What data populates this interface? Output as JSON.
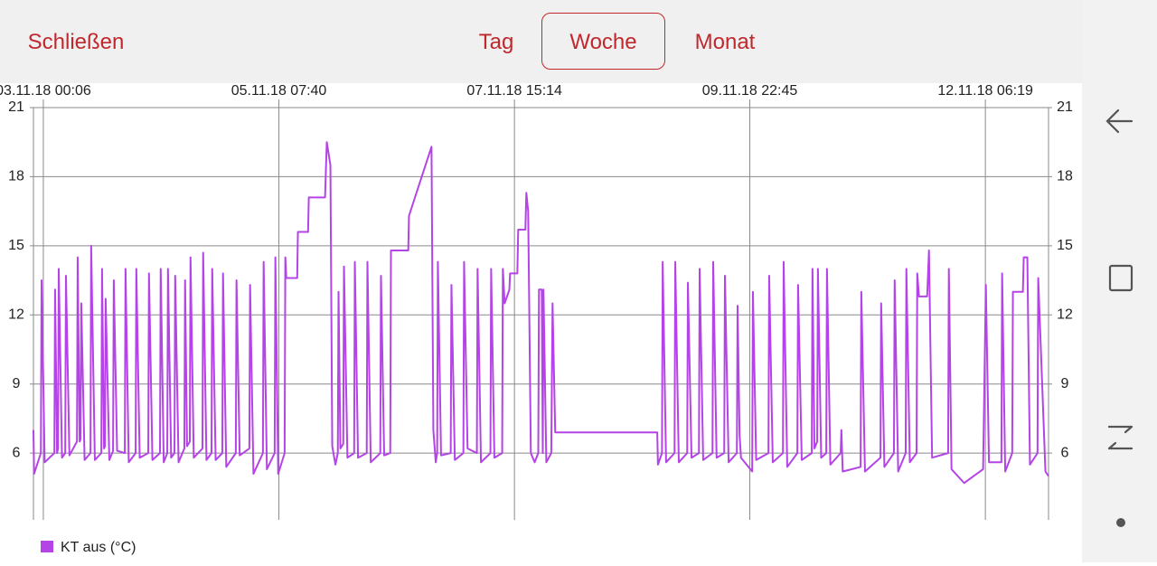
{
  "header": {
    "close": "Schließen",
    "tabs": [
      "Tag",
      "Woche",
      "Monat"
    ],
    "selected_tab": 1
  },
  "chart_data": {
    "type": "line",
    "grid": true,
    "x": [
      "02.11.18 21:46",
      "02.11.18 21:55",
      "02.11.18 23:31",
      "02.11.18 23:41",
      "03.11.18 00:25",
      "03.11.18 02:42",
      "03.11.18 02:52",
      "03.11.18 03:20",
      "03.11.18 03:34",
      "03.11.18 03:44",
      "03.11.18 04:30",
      "03.11.18 05:16",
      "03.11.18 05:26",
      "03.11.18 06:15",
      "03.11.18 08:02",
      "03.11.18 08:12",
      "03.11.18 08:40",
      "03.11.18 08:53",
      "03.11.18 09:03",
      "03.11.18 09:50",
      "03.11.18 11:13",
      "03.11.18 11:23",
      "03.11.18 12:15",
      "03.11.18 13:47",
      "03.11.18 13:57",
      "03.11.18 14:25",
      "03.11.18 14:38",
      "03.11.18 14:48",
      "03.11.18 15:40",
      "03.11.18 16:33",
      "03.11.18 16:43",
      "03.11.18 17:30",
      "03.11.18 19:19",
      "03.11.18 19:29",
      "03.11.18 20:15",
      "03.11.18 21:52",
      "03.11.18 22:02",
      "03.11.18 22:50",
      "04.11.18 00:51",
      "04.11.18 01:01",
      "04.11.18 01:50",
      "04.11.18 03:37",
      "04.11.18 03:47",
      "04.11.18 04:30",
      "04.11.18 05:20",
      "04.11.18 05:30",
      "04.11.18 06:15",
      "04.11.18 07:02",
      "04.11.18 07:12",
      "04.11.18 08:00",
      "04.11.18 09:22",
      "04.11.18 09:32",
      "04.11.18 10:00",
      "04.11.18 10:39",
      "04.11.18 10:49",
      "04.11.18 11:35",
      "04.11.18 13:38",
      "04.11.18 13:48",
      "04.11.18 14:35",
      "04.11.18 15:46",
      "04.11.18 15:56",
      "04.11.18 16:45",
      "04.11.18 18:19",
      "04.11.18 18:29",
      "04.11.18 19:15",
      "04.11.18 21:30",
      "04.11.18 21:40",
      "04.11.18 22:25",
      "05.11.18 00:42",
      "05.11.18 00:52",
      "05.11.18 01:40",
      "05.11.18 03:54",
      "05.11.18 04:04",
      "05.11.18 04:50",
      "05.11.18 06:40",
      "05.11.18 06:50",
      "05.11.18 07:30",
      "05.11.18 09:01",
      "05.11.18 09:11",
      "05.11.18 09:25",
      "05.11.18 11:59",
      "05.11.18 12:09",
      "05.11.18 14:33",
      "05.11.18 14:43",
      "05.11.18 18:33",
      "05.11.18 18:58",
      "05.11.18 19:49",
      "05.11.18 20:15",
      "05.11.18 21:00",
      "05.11.18 21:34",
      "05.11.18 21:44",
      "05.11.18 22:10",
      "05.11.18 22:51",
      "05.11.18 23:01",
      "05.11.18 23:50",
      "06.11.18 01:25",
      "06.11.18 01:35",
      "06.11.18 02:20",
      "06.11.18 04:23",
      "06.11.18 04:33",
      "06.11.18 05:20",
      "06.11.18 07:35",
      "06.11.18 07:45",
      "06.11.18 08:30",
      "06.11.18 09:56",
      "06.11.18 10:06",
      "06.11.18 14:11",
      "06.11.18 14:21",
      "06.11.18 19:40",
      "06.11.18 20:06",
      "06.11.18 20:40",
      "06.11.18 21:00",
      "06.11.18 21:10",
      "06.11.18 21:55",
      "07.11.18 00:12",
      "07.11.18 00:22",
      "07.11.18 01:10",
      "07.11.18 03:11",
      "07.11.18 03:21",
      "07.11.18 04:10",
      "07.11.18 06:22",
      "07.11.18 06:32",
      "07.11.18 07:20",
      "07.11.18 09:34",
      "07.11.18 09:44",
      "07.11.18 10:30",
      "07.11.18 12:20",
      "07.11.18 12:30",
      "07.11.18 12:55",
      "07.11.18 14:02",
      "07.11.18 14:12",
      "07.11.18 15:55",
      "07.11.18 16:07",
      "07.11.18 17:49",
      "07.11.18 18:02",
      "07.11.18 18:28",
      "07.11.18 19:06",
      "07.11.18 20:00",
      "07.11.18 20:51",
      "07.11.18 21:01",
      "07.11.18 21:40",
      "07.11.18 21:55",
      "07.11.18 22:05",
      "07.11.18 22:45",
      "07.11.18 23:55",
      "08.11.18 00:13",
      "08.11.18 00:51",
      "09.11.18 00:55",
      "09.11.18 01:05",
      "09.11.18 02:02",
      "09.11.18 02:12",
      "09.11.18 03:00",
      "09.11.18 05:00",
      "09.11.18 05:10",
      "09.11.18 06:00",
      "09.11.18 07:59",
      "09.11.18 08:09",
      "09.11.18 09:00",
      "09.11.18 10:45",
      "09.11.18 10:55",
      "09.11.18 11:45",
      "09.11.18 13:57",
      "09.11.18 14:07",
      "09.11.18 14:55",
      "09.11.18 16:43",
      "09.11.18 16:53",
      "09.11.18 17:45",
      "09.11.18 19:42",
      "09.11.18 19:52",
      "09.11.18 20:20",
      "09.11.18 20:40",
      "09.11.18 23:19",
      "09.11.18 23:29",
      "10.11.18 00:15",
      "10.11.18 03:09",
      "10.11.18 03:19",
      "10.11.18 04:10",
      "10.11.18 06:34",
      "10.11.18 06:44",
      "10.11.18 07:35",
      "10.11.18 09:58",
      "10.11.18 10:08",
      "10.11.18 11:00",
      "10.11.18 13:22",
      "10.11.18 13:32",
      "10.11.18 14:00",
      "10.11.18 14:39",
      "10.11.18 14:49",
      "10.11.18 15:35",
      "10.11.18 16:47",
      "10.11.18 16:57",
      "10.11.18 17:45",
      "10.11.18 20:11",
      "10.11.18 20:21",
      "10.11.18 20:40",
      "11.11.18 00:53",
      "11.11.18 01:03",
      "11.11.18 01:55",
      "11.11.18 05:34",
      "11.11.18 05:44",
      "11.11.18 06:30",
      "11.11.18 08:45",
      "11.11.18 08:55",
      "11.11.18 09:45",
      "11.11.18 11:31",
      "11.11.18 11:41",
      "11.11.18 12:30",
      "11.11.18 14:05",
      "11.11.18 14:15",
      "11.11.18 14:40",
      "11.11.18 16:35",
      "11.11.18 17:01",
      "11.11.18 17:45",
      "11.11.18 21:32",
      "11.11.18 21:42",
      "11.11.18 22:20",
      "12.11.18 01:19",
      "12.11.18 05:47",
      "12.11.18 06:26",
      "12.11.18 07:10",
      "12.11.18 10:06",
      "12.11.18 10:16",
      "12.11.18 11:00",
      "12.11.18 12:39",
      "12.11.18 12:49",
      "12.11.18 15:10",
      "12.11.18 15:22",
      "12.11.18 16:13",
      "12.11.18 16:50",
      "12.11.18 18:37",
      "12.11.18 18:47",
      "12.11.18 20:29",
      "12.11.18 21:13"
    ],
    "series": [
      {
        "name": "KT aus (°C)",
        "color": "#b444e6",
        "values": [
          7,
          5.1,
          6,
          13.5,
          5.6,
          6,
          13.1,
          6,
          6.2,
          14,
          5.8,
          6,
          13.7,
          5.9,
          6.5,
          14.5,
          6.5,
          6.6,
          12.5,
          5.7,
          6,
          15,
          5.7,
          6,
          14,
          6.2,
          6.3,
          12.7,
          5.7,
          6.1,
          13.5,
          6.1,
          6,
          14,
          5.6,
          6,
          14,
          5.8,
          6,
          13.8,
          5.7,
          6,
          14,
          5.6,
          6,
          14,
          5.8,
          6,
          13.7,
          5.6,
          6.2,
          13.5,
          6.3,
          6.5,
          14.5,
          5.8,
          6.2,
          14.7,
          5.7,
          6,
          14,
          5.7,
          6,
          13.8,
          5.4,
          6,
          13.5,
          5.9,
          6.2,
          13.3,
          5.1,
          6,
          14.3,
          5.3,
          6,
          14.5,
          5.1,
          6,
          14.5,
          13.6,
          13.6,
          15.6,
          15.6,
          17.1,
          17.1,
          19.5,
          18.5,
          6.3,
          5.5,
          6,
          13,
          6.2,
          6.4,
          14.1,
          5.8,
          6,
          14.3,
          5.8,
          6,
          14.3,
          5.6,
          6,
          13.7,
          5.9,
          6,
          14.8,
          14.8,
          16.3,
          19.3,
          7,
          5.6,
          6,
          14.3,
          5.9,
          6,
          13.3,
          5.7,
          6,
          14.3,
          6.2,
          6,
          14,
          5.6,
          6,
          14,
          5.8,
          6,
          14,
          12.5,
          13.1,
          13.8,
          13.8,
          15.7,
          15.7,
          17.3,
          16.5,
          6,
          5.6,
          6,
          13.1,
          13.1,
          6,
          13.1,
          5.6,
          6,
          12.5,
          6.9,
          6.9,
          5.5,
          6,
          14.3,
          5.6,
          6,
          14.3,
          5.6,
          6,
          13.4,
          5.8,
          6,
          14,
          5.7,
          6,
          14.3,
          5.8,
          6,
          13.7,
          5.6,
          6,
          12.4,
          6.8,
          5.8,
          5.2,
          13,
          5.7,
          6,
          13.7,
          5.6,
          6,
          14.3,
          5.4,
          6,
          13.3,
          5.7,
          6,
          14,
          6.2,
          6.5,
          14,
          5.8,
          6,
          14,
          5.5,
          6,
          7,
          5.2,
          5.4,
          13,
          5.2,
          5.8,
          12.5,
          5.4,
          6,
          13.5,
          5.2,
          6,
          14,
          5.6,
          6,
          13.8,
          12.8,
          12.8,
          14.8,
          5.8,
          6,
          14,
          5.3,
          4.7,
          5.3,
          13.3,
          5.6,
          5.6,
          13.8,
          5.2,
          6,
          13,
          13,
          14.5,
          14.5,
          5.5,
          6,
          13.6,
          5.2,
          5
        ]
      }
    ],
    "xlim": [
      "02.11.18 21:46",
      "12.11.18 21:13"
    ],
    "xticks": [
      "03.11.18 00:06",
      "05.11.18 07:40",
      "07.11.18 15:14",
      "09.11.18 22:45",
      "12.11.18 06:19"
    ],
    "ylim": [
      3.1,
      21
    ],
    "yticks": [
      6,
      9,
      12,
      15,
      18,
      21
    ]
  }
}
